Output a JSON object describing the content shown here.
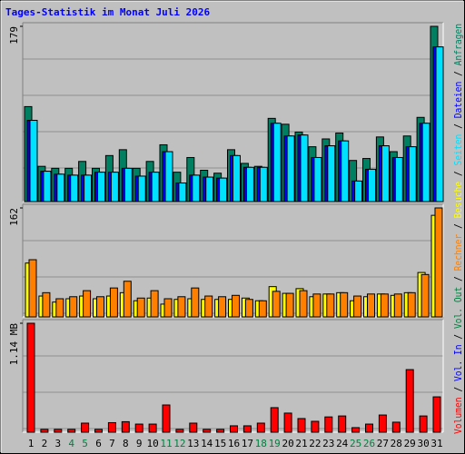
{
  "title": "Tages-Statistik im Monat Juli 2026",
  "title_color": "#0000ff",
  "legend_separator": " / ",
  "categories": [
    "1",
    "2",
    "3",
    "4",
    "5",
    "6",
    "7",
    "8",
    "9",
    "10",
    "11",
    "12",
    "13",
    "14",
    "15",
    "16",
    "17",
    "18",
    "19",
    "20",
    "21",
    "22",
    "23",
    "24",
    "25",
    "26",
    "27",
    "28",
    "29",
    "30",
    "31"
  ],
  "category_colors": [
    "#000000",
    "#000000",
    "#000000",
    "#008040",
    "#008040",
    "#000000",
    "#000000",
    "#000000",
    "#000000",
    "#000000",
    "#008040",
    "#008040",
    "#000000",
    "#000000",
    "#000000",
    "#000000",
    "#000000",
    "#008040",
    "#008040",
    "#000000",
    "#000000",
    "#000000",
    "#000000",
    "#000000",
    "#008040",
    "#008040",
    "#000000",
    "#000000",
    "#000000",
    "#000000",
    "#000000"
  ],
  "chart_data": [
    {
      "type": "bar",
      "ylim": [
        0,
        179
      ],
      "yticks": [
        179
      ],
      "grid": true,
      "series": [
        {
          "name": "Anfragen",
          "color": "#008060",
          "values": [
            97,
            36,
            34,
            34,
            41,
            34,
            47,
            53,
            34,
            41,
            58,
            30,
            45,
            32,
            29,
            53,
            39,
            36,
            85,
            79,
            71,
            56,
            64,
            70,
            42,
            44,
            66,
            51,
            67,
            86,
            179
          ]
        },
        {
          "name": "Dateien",
          "color": "#0000ff",
          "values": [
            83,
            31,
            28,
            27,
            27,
            30,
            30,
            34,
            26,
            30,
            51,
            19,
            27,
            25,
            24,
            47,
            35,
            35,
            80,
            67,
            68,
            45,
            57,
            62,
            21,
            33,
            57,
            45,
            56,
            80,
            158
          ]
        },
        {
          "name": "Seiten",
          "color": "#00e0ff",
          "values": [
            83,
            31,
            28,
            27,
            27,
            30,
            30,
            34,
            26,
            30,
            51,
            19,
            27,
            25,
            24,
            47,
            35,
            35,
            80,
            67,
            68,
            45,
            57,
            62,
            21,
            33,
            57,
            45,
            56,
            80,
            158
          ]
        }
      ]
    },
    {
      "type": "bar",
      "ylim": [
        0,
        162
      ],
      "yticks": [
        162
      ],
      "grid": true,
      "series": [
        {
          "name": "Besuche",
          "color": "#ffff00",
          "values": [
            80,
            31,
            22,
            27,
            31,
            27,
            31,
            36,
            24,
            28,
            19,
            26,
            27,
            26,
            26,
            26,
            28,
            24,
            45,
            35,
            42,
            30,
            34,
            36,
            24,
            30,
            34,
            32,
            36,
            66,
            151
          ]
        },
        {
          "name": "Rechner",
          "color": "#ff8000",
          "values": [
            85,
            36,
            27,
            30,
            39,
            30,
            43,
            53,
            28,
            39,
            27,
            30,
            43,
            31,
            30,
            32,
            26,
            24,
            38,
            35,
            39,
            34,
            34,
            36,
            31,
            34,
            34,
            34,
            36,
            63,
            162
          ]
        }
      ]
    },
    {
      "type": "bar",
      "ylim": [
        0,
        1.14
      ],
      "yticks": [
        {
          "value": 1.14,
          "label": "1.14 MB"
        }
      ],
      "grid": true,
      "series": [
        {
          "name": "Volumen",
          "color": "#ff0000",
          "values": [
            1.14,
            0.03,
            0.03,
            0.03,
            0.095,
            0.03,
            0.1,
            0.11,
            0.085,
            0.085,
            0.285,
            0.03,
            0.095,
            0.03,
            0.03,
            0.067,
            0.067,
            0.095,
            0.257,
            0.2,
            0.143,
            0.114,
            0.16,
            0.17,
            0.048,
            0.085,
            0.18,
            0.105,
            0.655,
            0.17,
            0.37
          ]
        }
      ],
      "extra_legend": [
        {
          "name": "Vol. In",
          "color": "#0000ff"
        },
        {
          "name": "Vol. Out",
          "color": "#008040"
        }
      ]
    }
  ]
}
